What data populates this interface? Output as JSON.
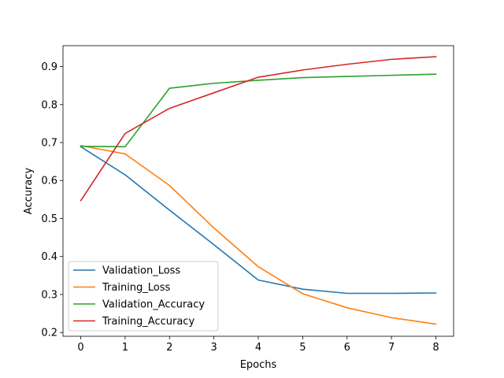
{
  "chart_data": {
    "type": "line",
    "title": "",
    "xlabel": "Epochs",
    "ylabel": "Accuracy",
    "x": [
      0,
      1,
      2,
      3,
      4,
      5,
      6,
      7,
      8
    ],
    "xlim": [
      -0.4,
      8.4
    ],
    "ylim": [
      0.19,
      0.955
    ],
    "xticks": [
      0,
      1,
      2,
      3,
      4,
      5,
      6,
      7,
      8
    ],
    "yticks": [
      0.2,
      0.3,
      0.4,
      0.5,
      0.6,
      0.7,
      0.8,
      0.9
    ],
    "ytick_labels": [
      "0.2",
      "0.3",
      "0.4",
      "0.5",
      "0.6",
      "0.7",
      "0.8",
      "0.9"
    ],
    "grid": false,
    "legend_position": "lower-left",
    "series": [
      {
        "name": "Validation_Loss",
        "color": "#1f77b4",
        "values": [
          0.689,
          0.615,
          0.522,
          0.431,
          0.338,
          0.314,
          0.303,
          0.303,
          0.304
        ]
      },
      {
        "name": "Training_Loss",
        "color": "#ff7f0e",
        "values": [
          0.692,
          0.67,
          0.587,
          0.475,
          0.373,
          0.302,
          0.265,
          0.239,
          0.222
        ]
      },
      {
        "name": "Validation_Accuracy",
        "color": "#2ca02c",
        "values": [
          0.69,
          0.689,
          0.843,
          0.856,
          0.864,
          0.871,
          0.874,
          0.877,
          0.88
        ]
      },
      {
        "name": "Training_Accuracy",
        "color": "#d62728",
        "values": [
          0.547,
          0.724,
          0.79,
          0.831,
          0.872,
          0.891,
          0.906,
          0.919,
          0.926
        ]
      }
    ]
  }
}
